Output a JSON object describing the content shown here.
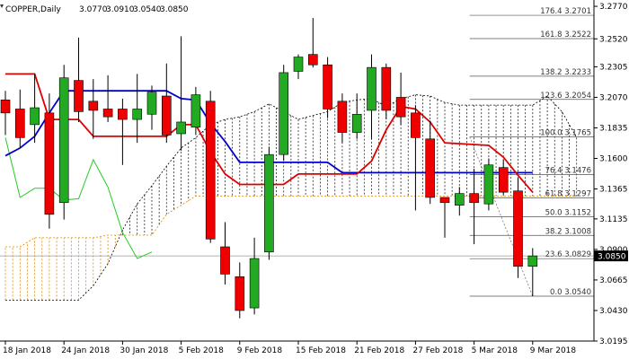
{
  "header": {
    "symbol_label": "COPPER,Daily",
    "ohlc": [
      "3.0770",
      "3.0910",
      "3.0540",
      "3.0850"
    ]
  },
  "current_price_label": "3.0850",
  "colors": {
    "bull": "#22aa22",
    "bear": "#ee0000",
    "tenkan": "#dd0000",
    "kijun": "#0000cc",
    "chikou": "#22cc22",
    "span_a": "#000000",
    "span_b": "#dd8800",
    "fib": "#555555"
  },
  "chart_data": {
    "type": "candlestick",
    "symbol": "COPPER",
    "timeframe": "Daily",
    "ylim": [
      3.0195,
      3.2805
    ],
    "y_ticks": [
      "3.2770",
      "3.2520",
      "3.2305",
      "3.2070",
      "3.1835",
      "3.1600",
      "3.1365",
      "3.1135",
      "3.0900",
      "3.0665",
      "3.0430",
      "3.0195"
    ],
    "x_tick_labels": [
      {
        "i": 0,
        "label": "18 Jan 2018"
      },
      {
        "i": 4,
        "label": "24 Jan 2018"
      },
      {
        "i": 8,
        "label": "30 Jan 2018"
      },
      {
        "i": 12,
        "label": "5 Feb 2018"
      },
      {
        "i": 16,
        "label": "9 Feb 2018"
      },
      {
        "i": 20,
        "label": "15 Feb 2018"
      },
      {
        "i": 24,
        "label": "21 Feb 2018"
      },
      {
        "i": 28,
        "label": "27 Feb 2018"
      },
      {
        "i": 32,
        "label": "5 Mar 2018"
      },
      {
        "i": 36,
        "label": "9 Mar 2018"
      }
    ],
    "candles": [
      {
        "o": 3.205,
        "h": 3.212,
        "l": 3.178,
        "c": 3.195
      },
      {
        "o": 3.198,
        "h": 3.213,
        "l": 3.168,
        "c": 3.176
      },
      {
        "o": 3.186,
        "h": 3.225,
        "l": 3.172,
        "c": 3.199
      },
      {
        "o": 3.195,
        "h": 3.21,
        "l": 3.106,
        "c": 3.117
      },
      {
        "o": 3.126,
        "h": 3.232,
        "l": 3.113,
        "c": 3.222
      },
      {
        "o": 3.22,
        "h": 3.253,
        "l": 3.188,
        "c": 3.196
      },
      {
        "o": 3.204,
        "h": 3.221,
        "l": 3.175,
        "c": 3.197
      },
      {
        "o": 3.198,
        "h": 3.224,
        "l": 3.188,
        "c": 3.192
      },
      {
        "o": 3.198,
        "h": 3.206,
        "l": 3.155,
        "c": 3.19
      },
      {
        "o": 3.19,
        "h": 3.225,
        "l": 3.172,
        "c": 3.198
      },
      {
        "o": 3.194,
        "h": 3.216,
        "l": 3.182,
        "c": 3.211
      },
      {
        "o": 3.208,
        "h": 3.233,
        "l": 3.172,
        "c": 3.178
      },
      {
        "o": 3.179,
        "h": 3.254,
        "l": 3.166,
        "c": 3.188
      },
      {
        "o": 3.184,
        "h": 3.215,
        "l": 3.178,
        "c": 3.209
      },
      {
        "o": 3.204,
        "h": 3.212,
        "l": 3.095,
        "c": 3.098
      },
      {
        "o": 3.092,
        "h": 3.111,
        "l": 3.063,
        "c": 3.071
      },
      {
        "o": 3.069,
        "h": 3.08,
        "l": 3.037,
        "c": 3.043
      },
      {
        "o": 3.045,
        "h": 3.099,
        "l": 3.04,
        "c": 3.083
      },
      {
        "o": 3.088,
        "h": 3.169,
        "l": 3.082,
        "c": 3.163
      },
      {
        "o": 3.163,
        "h": 3.232,
        "l": 3.158,
        "c": 3.226
      },
      {
        "o": 3.227,
        "h": 3.24,
        "l": 3.221,
        "c": 3.238
      },
      {
        "o": 3.24,
        "h": 3.268,
        "l": 3.23,
        "c": 3.232
      },
      {
        "o": 3.232,
        "h": 3.238,
        "l": 3.191,
        "c": 3.198
      },
      {
        "o": 3.204,
        "h": 3.21,
        "l": 3.172,
        "c": 3.18
      },
      {
        "o": 3.18,
        "h": 3.21,
        "l": 3.175,
        "c": 3.194
      },
      {
        "o": 3.197,
        "h": 3.24,
        "l": 3.175,
        "c": 3.23
      },
      {
        "o": 3.23,
        "h": 3.233,
        "l": 3.19,
        "c": 3.197
      },
      {
        "o": 3.207,
        "h": 3.226,
        "l": 3.186,
        "c": 3.192
      },
      {
        "o": 3.195,
        "h": 3.201,
        "l": 3.12,
        "c": 3.176
      },
      {
        "o": 3.175,
        "h": 3.189,
        "l": 3.125,
        "c": 3.13
      },
      {
        "o": 3.13,
        "h": 3.13,
        "l": 3.099,
        "c": 3.126
      },
      {
        "o": 3.124,
        "h": 3.138,
        "l": 3.116,
        "c": 3.133
      },
      {
        "o": 3.133,
        "h": 3.152,
        "l": 3.094,
        "c": 3.126
      },
      {
        "o": 3.125,
        "h": 3.16,
        "l": 3.12,
        "c": 3.155
      },
      {
        "o": 3.153,
        "h": 3.159,
        "l": 3.132,
        "c": 3.134
      },
      {
        "o": 3.135,
        "h": 3.145,
        "l": 3.068,
        "c": 3.077
      },
      {
        "o": 3.077,
        "h": 3.091,
        "l": 3.054,
        "c": 3.085
      }
    ],
    "indicators": {
      "tenkan": [
        {
          "i": 0,
          "v": 3.225
        },
        {
          "i": 2,
          "v": 3.225
        },
        {
          "i": 3,
          "v": 3.19
        },
        {
          "i": 5,
          "v": 3.19
        },
        {
          "i": 6,
          "v": 3.177
        },
        {
          "i": 11,
          "v": 3.177
        },
        {
          "i": 12,
          "v": 3.186
        },
        {
          "i": 13,
          "v": 3.186
        },
        {
          "i": 14,
          "v": 3.165
        },
        {
          "i": 15,
          "v": 3.148
        },
        {
          "i": 16,
          "v": 3.14
        },
        {
          "i": 19,
          "v": 3.14
        },
        {
          "i": 20,
          "v": 3.148
        },
        {
          "i": 24,
          "v": 3.148
        },
        {
          "i": 25,
          "v": 3.158
        },
        {
          "i": 26,
          "v": 3.182
        },
        {
          "i": 27,
          "v": 3.2
        },
        {
          "i": 28,
          "v": 3.198
        },
        {
          "i": 29,
          "v": 3.188
        },
        {
          "i": 30,
          "v": 3.172
        },
        {
          "i": 33,
          "v": 3.17
        },
        {
          "i": 34,
          "v": 3.161
        },
        {
          "i": 35,
          "v": 3.147
        },
        {
          "i": 36,
          "v": 3.134
        }
      ],
      "kijun": [
        {
          "i": 0,
          "v": 3.162
        },
        {
          "i": 1,
          "v": 3.168
        },
        {
          "i": 2,
          "v": 3.177
        },
        {
          "i": 3,
          "v": 3.195
        },
        {
          "i": 4,
          "v": 3.212
        },
        {
          "i": 11,
          "v": 3.212
        },
        {
          "i": 12,
          "v": 3.206
        },
        {
          "i": 13,
          "v": 3.205
        },
        {
          "i": 14,
          "v": 3.187
        },
        {
          "i": 15,
          "v": 3.173
        },
        {
          "i": 16,
          "v": 3.157
        },
        {
          "i": 22,
          "v": 3.157
        },
        {
          "i": 23,
          "v": 3.149
        },
        {
          "i": 36,
          "v": 3.149
        }
      ],
      "chikou": [
        {
          "i": 0,
          "v": 3.176
        },
        {
          "i": 1,
          "v": 3.13
        },
        {
          "i": 2,
          "v": 3.137
        },
        {
          "i": 3,
          "v": 3.137
        },
        {
          "i": 4,
          "v": 3.128
        },
        {
          "i": 5,
          "v": 3.129
        },
        {
          "i": 6,
          "v": 3.159
        },
        {
          "i": 7,
          "v": 3.138
        },
        {
          "i": 8,
          "v": 3.103
        },
        {
          "i": 9,
          "v": 3.083
        },
        {
          "i": 10,
          "v": 3.088
        }
      ],
      "span_a": [
        {
          "i": 0,
          "v": 3.051
        },
        {
          "i": 5,
          "v": 3.051
        },
        {
          "i": 6,
          "v": 3.062
        },
        {
          "i": 7,
          "v": 3.079
        },
        {
          "i": 8,
          "v": 3.105
        },
        {
          "i": 9,
          "v": 3.125
        },
        {
          "i": 10,
          "v": 3.139
        },
        {
          "i": 11,
          "v": 3.154
        },
        {
          "i": 12,
          "v": 3.168
        },
        {
          "i": 13,
          "v": 3.176
        },
        {
          "i": 14,
          "v": 3.186
        },
        {
          "i": 15,
          "v": 3.19
        },
        {
          "i": 16,
          "v": 3.192
        },
        {
          "i": 17,
          "v": 3.196
        },
        {
          "i": 18,
          "v": 3.202
        },
        {
          "i": 19,
          "v": 3.196
        },
        {
          "i": 20,
          "v": 3.19
        },
        {
          "i": 21,
          "v": 3.193
        },
        {
          "i": 22,
          "v": 3.196
        },
        {
          "i": 23,
          "v": 3.203
        },
        {
          "i": 24,
          "v": 3.205
        },
        {
          "i": 25,
          "v": 3.206
        },
        {
          "i": 26,
          "v": 3.2
        },
        {
          "i": 27,
          "v": 3.206
        },
        {
          "i": 28,
          "v": 3.209
        },
        {
          "i": 29,
          "v": 3.208
        },
        {
          "i": 30,
          "v": 3.203
        },
        {
          "i": 31,
          "v": 3.201
        },
        {
          "i": 32,
          "v": 3.201
        },
        {
          "i": 33,
          "v": 3.201
        },
        {
          "i": 34,
          "v": 3.201
        },
        {
          "i": 35,
          "v": 3.201
        },
        {
          "i": 36,
          "v": 3.201
        },
        {
          "i": 37,
          "v": 3.208
        },
        {
          "i": 38,
          "v": 3.196
        },
        {
          "i": 39,
          "v": 3.176
        }
      ],
      "span_b": [
        {
          "i": 0,
          "v": 3.092
        },
        {
          "i": 1,
          "v": 3.092
        },
        {
          "i": 2,
          "v": 3.099
        },
        {
          "i": 3,
          "v": 3.099
        },
        {
          "i": 6,
          "v": 3.099
        },
        {
          "i": 7,
          "v": 3.101
        },
        {
          "i": 10,
          "v": 3.101
        },
        {
          "i": 11,
          "v": 3.117
        },
        {
          "i": 12,
          "v": 3.124
        },
        {
          "i": 13,
          "v": 3.131
        },
        {
          "i": 39,
          "v": 3.131
        }
      ]
    },
    "fibonacci": [
      {
        "level": "176.4",
        "price": "3.2701"
      },
      {
        "level": "161.8",
        "price": "3.2522"
      },
      {
        "level": "138.2",
        "price": "3.2233"
      },
      {
        "level": "123.6",
        "price": "3.2054"
      },
      {
        "level": "100.0",
        "price": "3.1765"
      },
      {
        "level": "76.4",
        "price": "3.1476"
      },
      {
        "level": "61.8",
        "price": "3.1297"
      },
      {
        "level": "50.0",
        "price": "3.1152"
      },
      {
        "level": "38.2",
        "price": "3.1008"
      },
      {
        "level": "23.6",
        "price": "3.0829"
      },
      {
        "level": "0.0",
        "price": "3.0540"
      }
    ],
    "current_price": 3.085,
    "grid": false,
    "legend": "none"
  }
}
